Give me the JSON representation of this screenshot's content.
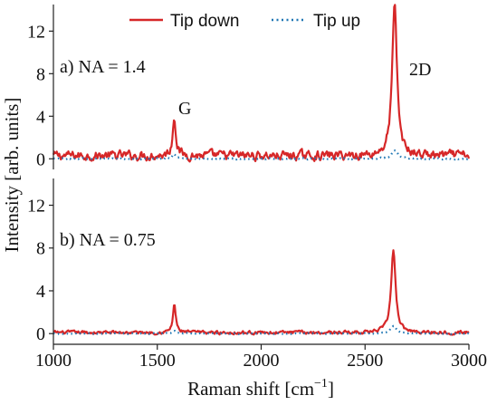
{
  "chart_data": {
    "type": "line",
    "xlabel": "Raman shift [cm",
    "xlabel_superscript": "−1",
    "xlabel_suffix": "]",
    "ylabel": "Intensity [arb. units]",
    "xlim": [
      1000,
      3000
    ],
    "x_ticks": [
      1000,
      1500,
      2000,
      2500,
      3000
    ],
    "grid": false,
    "legend": {
      "placement": "top-center",
      "entries": [
        {
          "label": "Tip down",
          "style": "solid",
          "color": "#d62728"
        },
        {
          "label": "Tip up",
          "style": "dotted",
          "color": "#1f77b4"
        }
      ]
    },
    "panels": [
      {
        "label": "a)  NA = 1.4",
        "ylim": [
          -1,
          14.5
        ],
        "y_ticks": [
          0,
          4,
          8,
          12
        ],
        "peak_labels": [
          {
            "text": "G",
            "x": 1620,
            "y": 4.6
          },
          {
            "text": "2D",
            "x": 2710,
            "y": 8.0
          }
        ],
        "series": [
          {
            "name": "Tip down",
            "color": "#d62728",
            "baseline": 0.3,
            "noise": 0.75,
            "peaks": [
              {
                "center": 1582,
                "height": 3.8,
                "width": 9
              },
              {
                "center": 2642,
                "height": 14.0,
                "width": 14
              }
            ]
          },
          {
            "name": "Tip up",
            "color": "#1f77b4",
            "baseline": 0.0,
            "noise": 0.12,
            "peaks": [
              {
                "center": 1582,
                "height": 0.4,
                "width": 12
              },
              {
                "center": 2642,
                "height": 0.8,
                "width": 18
              }
            ]
          }
        ]
      },
      {
        "label": "b)  NA = 0.75",
        "ylim": [
          -1,
          14.5
        ],
        "y_ticks": [
          0,
          4,
          8,
          12
        ],
        "peak_labels": [],
        "series": [
          {
            "name": "Tip down",
            "color": "#d62728",
            "baseline": 0.1,
            "noise": 0.28,
            "peaks": [
              {
                "center": 1582,
                "height": 2.7,
                "width": 8
              },
              {
                "center": 2636,
                "height": 7.6,
                "width": 13
              }
            ]
          },
          {
            "name": "Tip up",
            "color": "#1f77b4",
            "baseline": 0.0,
            "noise": 0.08,
            "peaks": [
              {
                "center": 1582,
                "height": 0.25,
                "width": 12
              },
              {
                "center": 2636,
                "height": 0.7,
                "width": 18
              }
            ]
          }
        ]
      }
    ]
  }
}
